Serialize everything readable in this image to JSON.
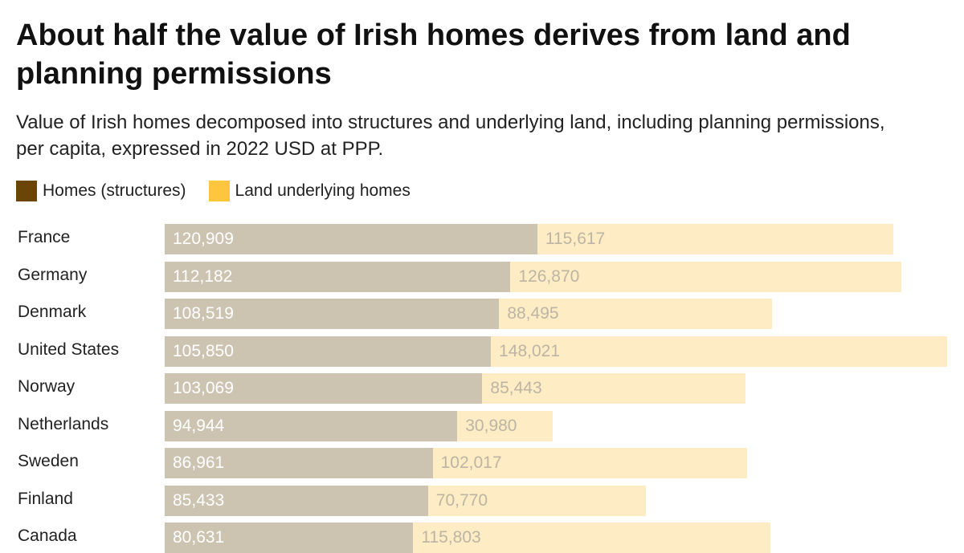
{
  "title": "About half the value of Irish homes derives from land and planning permissions",
  "subtitle": "Value of Irish homes decomposed into structures and underlying land, including planning permissions, per capita, expressed in 2022 USD at PPP.",
  "chart_data": {
    "type": "bar",
    "orientation": "horizontal",
    "stacked": true,
    "title": "About half the value of Irish homes derives from land and planning permissions",
    "subtitle": "Value of Irish homes decomposed into structures and underlying land, including planning permissions, per capita, expressed in 2022 USD at PPP.",
    "legend_position": "top-left",
    "categories": [
      "France",
      "Germany",
      "Denmark",
      "United States",
      "Norway",
      "Netherlands",
      "Sweden",
      "Finland",
      "Canada"
    ],
    "series": [
      {
        "name": "Homes (structures)",
        "color": "#6b4408",
        "bar_color": "#cdc3b1",
        "label_color": "#ffffff",
        "values": [
          120909,
          112182,
          108519,
          105850,
          103069,
          94944,
          86961,
          85433,
          80631
        ],
        "labels": [
          "120,909",
          "112,182",
          "108,519",
          "105,850",
          "103,069",
          "94,944",
          "86,961",
          "85,433",
          "80,631"
        ]
      },
      {
        "name": "Land underlying homes",
        "color": "#fcc63f",
        "bar_color": "#fdecc4",
        "label_color": "#bdb5a4",
        "values": [
          115617,
          126870,
          88495,
          148021,
          85443,
          30980,
          102017,
          70770,
          115803
        ],
        "labels": [
          "115,617",
          "126,870",
          "88,495",
          "148,021",
          "85,443",
          "30,980",
          "102,017",
          "70,770",
          "115,803"
        ]
      }
    ],
    "xlim": [
      0,
      253871
    ],
    "grid": false
  }
}
